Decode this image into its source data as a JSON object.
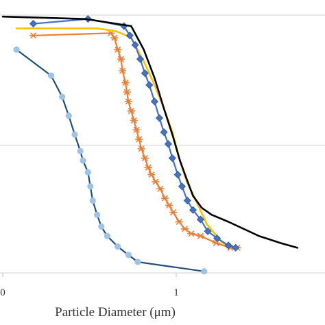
{
  "chart_data": {
    "type": "line",
    "title": "",
    "xlabel": "Particle Diameter (μm)",
    "ylabel": "",
    "x_scale": "log",
    "x_tick_labels": [
      "0",
      "1"
    ],
    "xlim": [
      0.1,
      10
    ],
    "ylim": [
      0,
      100
    ],
    "grid": "horizontal",
    "legend": "none",
    "series": [
      {
        "color": "#1F4E79",
        "marker": "circle",
        "marker_color": "#9DC3E6",
        "points": [
          [
            0.12,
            90
          ],
          [
            0.19,
            79
          ],
          [
            0.22,
            70
          ],
          [
            0.24,
            62
          ],
          [
            0.26,
            54
          ],
          [
            0.28,
            47
          ],
          [
            0.29,
            43
          ],
          [
            0.31,
            38
          ],
          [
            0.32,
            32
          ],
          [
            0.33,
            26
          ],
          [
            0.35,
            20
          ],
          [
            0.37,
            15
          ],
          [
            0.4,
            11
          ],
          [
            0.46,
            6.5
          ],
          [
            0.53,
            3
          ],
          [
            0.6,
            0
          ],
          [
            1.45,
            -4
          ]
        ]
      },
      {
        "color": "#ED7D31",
        "marker": "star",
        "marker_color": "#ED7D31",
        "points": [
          [
            0.15,
            96
          ],
          [
            0.42,
            97
          ],
          [
            0.44,
            95
          ],
          [
            0.46,
            90
          ],
          [
            0.48,
            86
          ],
          [
            0.49,
            81
          ],
          [
            0.51,
            76
          ],
          [
            0.52,
            72
          ],
          [
            0.53,
            68
          ],
          [
            0.55,
            64
          ],
          [
            0.57,
            60
          ],
          [
            0.59,
            56
          ],
          [
            0.61,
            52
          ],
          [
            0.63,
            48
          ],
          [
            0.66,
            44
          ],
          [
            0.69,
            40
          ],
          [
            0.72,
            37
          ],
          [
            0.76,
            34
          ],
          [
            0.81,
            31
          ],
          [
            0.86,
            27
          ],
          [
            0.91,
            24
          ],
          [
            0.96,
            21
          ],
          [
            1.04,
            17
          ],
          [
            1.12,
            14
          ],
          [
            1.22,
            12
          ],
          [
            1.38,
            11
          ],
          [
            1.7,
            8
          ],
          [
            2.05,
            6
          ],
          [
            2.25,
            6
          ]
        ]
      },
      {
        "color": "#FFC000",
        "marker": "none",
        "points": [
          [
            0.12,
            99
          ],
          [
            0.35,
            99
          ],
          [
            0.44,
            98
          ],
          [
            0.48,
            97
          ],
          [
            0.55,
            95
          ],
          [
            0.65,
            85
          ],
          [
            0.75,
            75
          ],
          [
            0.85,
            65
          ],
          [
            0.95,
            55
          ],
          [
            1.05,
            43
          ],
          [
            1.15,
            34
          ],
          [
            1.3,
            26
          ],
          [
            1.5,
            16
          ],
          [
            1.8,
            9
          ],
          [
            2.0,
            6
          ]
        ]
      },
      {
        "color": "#4472C4",
        "marker": "diamond",
        "marker_color": "#4472C4",
        "points": [
          [
            0.15,
            101
          ],
          [
            0.31,
            103
          ],
          [
            0.5,
            100
          ],
          [
            0.54,
            96
          ],
          [
            0.58,
            92
          ],
          [
            0.62,
            86
          ],
          [
            0.66,
            80
          ],
          [
            0.7,
            75
          ],
          [
            0.75,
            68
          ],
          [
            0.8,
            61
          ],
          [
            0.85,
            55
          ],
          [
            0.9,
            50
          ],
          [
            0.95,
            44
          ],
          [
            1.02,
            37
          ],
          [
            1.08,
            32
          ],
          [
            1.16,
            26
          ],
          [
            1.25,
            22
          ],
          [
            1.38,
            18
          ],
          [
            1.52,
            13
          ],
          [
            1.72,
            10
          ],
          [
            2.0,
            7
          ],
          [
            2.2,
            6
          ]
        ]
      },
      {
        "color": "#000000",
        "marker": "none",
        "points": [
          [
            0.1,
            104
          ],
          [
            0.3,
            103
          ],
          [
            0.55,
            100
          ],
          [
            0.65,
            90
          ],
          [
            0.75,
            78
          ],
          [
            0.85,
            65
          ],
          [
            0.95,
            54
          ],
          [
            1.05,
            43
          ],
          [
            1.15,
            35
          ],
          [
            1.25,
            28
          ],
          [
            1.4,
            23
          ],
          [
            1.6,
            20
          ],
          [
            2.0,
            17
          ],
          [
            3.0,
            11
          ],
          [
            4.0,
            8
          ],
          [
            5.0,
            6
          ]
        ]
      }
    ]
  }
}
